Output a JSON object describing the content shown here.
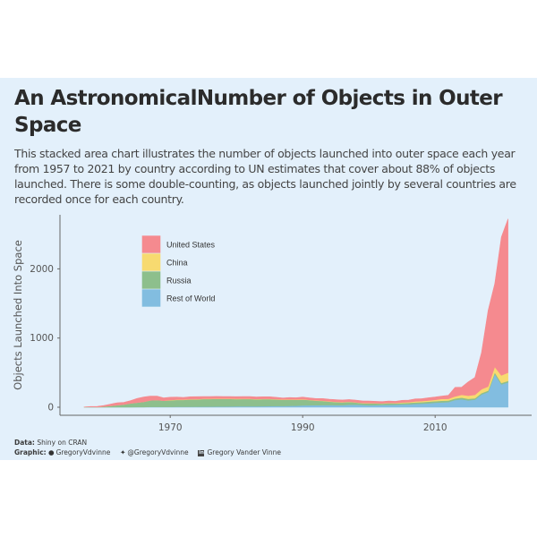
{
  "title": "An AstronomicalNumber of Objects in Outer Space",
  "subtitle": "This stacked area chart illustrates the number of objects launched into outer space each year from 1957 to 2021 by country according to UN estimates that cover about 88% of objects launched. There is some double-counting, as objects launched jointly by several countries are recorded once for each country.",
  "footer": {
    "data_label": "Data:",
    "data_source": " Shiny on CRAN",
    "graphic_label": "Graphic:",
    "github": "GregoryVdvinne",
    "twitter": "@GregoryVdvinne",
    "linkedin": "Gregory Vander Vinne"
  },
  "colors": {
    "background": "#e3f0fb",
    "United States": "#f58a8f",
    "China": "#f7da70",
    "Russia": "#8dbf8c",
    "Rest of World": "#82bde0"
  },
  "icons": [
    "github-icon",
    "twitter-icon",
    "linkedin-icon"
  ],
  "chart_data": {
    "type": "area",
    "stacked": true,
    "title": "An AstronomicalNumber of Objects in Outer Space",
    "xlabel": "",
    "ylabel": "Objects Launched Into Space",
    "xlim": [
      1955,
      2022
    ],
    "ylim": [
      0,
      2700
    ],
    "x_ticks": [
      1970,
      1990,
      2010
    ],
    "y_ticks": [
      0,
      1000,
      2000
    ],
    "legend_position": "top-left",
    "x": [
      1957,
      1958,
      1959,
      1960,
      1961,
      1962,
      1963,
      1964,
      1965,
      1966,
      1967,
      1968,
      1969,
      1970,
      1971,
      1972,
      1973,
      1974,
      1975,
      1976,
      1977,
      1978,
      1979,
      1980,
      1981,
      1982,
      1983,
      1984,
      1985,
      1986,
      1987,
      1988,
      1989,
      1990,
      1991,
      1992,
      1993,
      1994,
      1995,
      1996,
      1997,
      1998,
      1999,
      2000,
      2001,
      2002,
      2003,
      2004,
      2005,
      2006,
      2007,
      2008,
      2009,
      2010,
      2011,
      2012,
      2013,
      2014,
      2015,
      2016,
      2017,
      2018,
      2019,
      2020,
      2021
    ],
    "series": [
      {
        "name": "Rest of World",
        "values": [
          0,
          0,
          0,
          0,
          0,
          0,
          0,
          0,
          2,
          3,
          5,
          5,
          5,
          5,
          6,
          6,
          7,
          8,
          9,
          9,
          10,
          10,
          12,
          13,
          14,
          14,
          14,
          16,
          17,
          18,
          18,
          20,
          22,
          26,
          28,
          30,
          31,
          32,
          30,
          30,
          36,
          38,
          32,
          28,
          30,
          32,
          34,
          36,
          40,
          42,
          48,
          52,
          57,
          66,
          70,
          75,
          105,
          115,
          100,
          110,
          185,
          220,
          480,
          330,
          360
        ]
      },
      {
        "name": "Russia",
        "values": [
          2,
          5,
          3,
          10,
          20,
          30,
          40,
          55,
          65,
          75,
          95,
          100,
          90,
          95,
          100,
          100,
          105,
          105,
          110,
          110,
          112,
          110,
          108,
          105,
          105,
          105,
          100,
          100,
          100,
          95,
          90,
          90,
          85,
          85,
          75,
          65,
          60,
          50,
          45,
          40,
          40,
          30,
          25,
          28,
          25,
          20,
          25,
          20,
          20,
          22,
          22,
          22,
          25,
          22,
          25,
          22,
          22,
          25,
          22,
          20,
          20,
          20,
          25,
          20,
          20
        ]
      },
      {
        "name": "China",
        "values": [
          0,
          0,
          0,
          0,
          0,
          0,
          0,
          0,
          0,
          0,
          0,
          0,
          0,
          5,
          5,
          5,
          5,
          5,
          5,
          5,
          5,
          5,
          5,
          5,
          5,
          5,
          5,
          5,
          5,
          5,
          5,
          5,
          5,
          5,
          5,
          5,
          5,
          5,
          5,
          5,
          5,
          5,
          5,
          5,
          5,
          5,
          5,
          5,
          10,
          10,
          15,
          15,
          15,
          20,
          25,
          25,
          30,
          40,
          45,
          50,
          55,
          60,
          80,
          110,
          120
        ]
      },
      {
        "name": "United States",
        "values": [
          0,
          5,
          8,
          15,
          25,
          35,
          30,
          40,
          60,
          70,
          60,
          55,
          40,
          40,
          35,
          30,
          35,
          35,
          30,
          30,
          30,
          30,
          30,
          30,
          30,
          30,
          30,
          30,
          30,
          25,
          20,
          25,
          25,
          30,
          28,
          25,
          30,
          30,
          30,
          30,
          30,
          30,
          30,
          30,
          25,
          25,
          25,
          25,
          30,
          30,
          35,
          35,
          40,
          40,
          40,
          50,
          130,
          110,
          200,
          250,
          530,
          1100,
          1200,
          2000,
          2220
        ]
      }
    ]
  }
}
